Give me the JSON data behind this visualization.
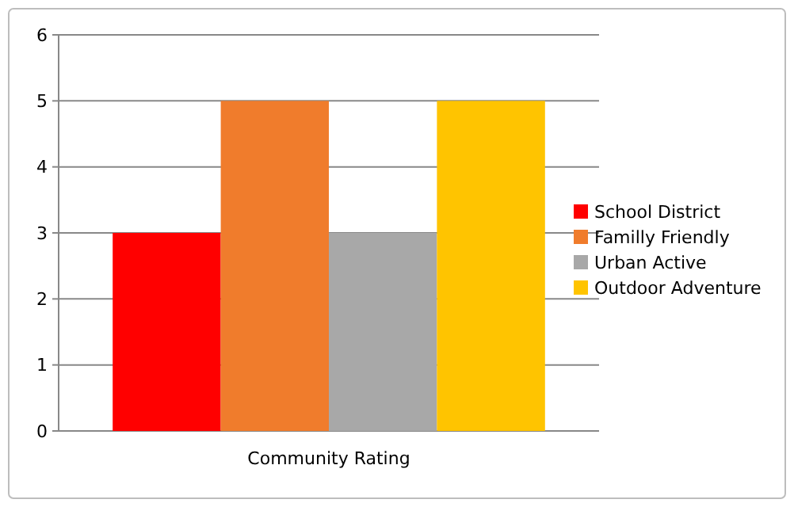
{
  "chart_data": {
    "type": "bar",
    "categories": [
      "Community Rating"
    ],
    "series": [
      {
        "name": "School District",
        "color": "#ff0000",
        "values": [
          3
        ]
      },
      {
        "name": "Familly Friendly",
        "color": "#f07c2c",
        "values": [
          5
        ]
      },
      {
        "name": "Urban Active",
        "color": "#a8a8a8",
        "values": [
          3
        ]
      },
      {
        "name": "Outdoor Adventure",
        "color": "#ffc400",
        "values": [
          5
        ]
      }
    ],
    "ylim": [
      0,
      6
    ],
    "yticks": [
      0,
      1,
      2,
      3,
      4,
      5,
      6
    ],
    "grid": "y",
    "legend": "right"
  }
}
